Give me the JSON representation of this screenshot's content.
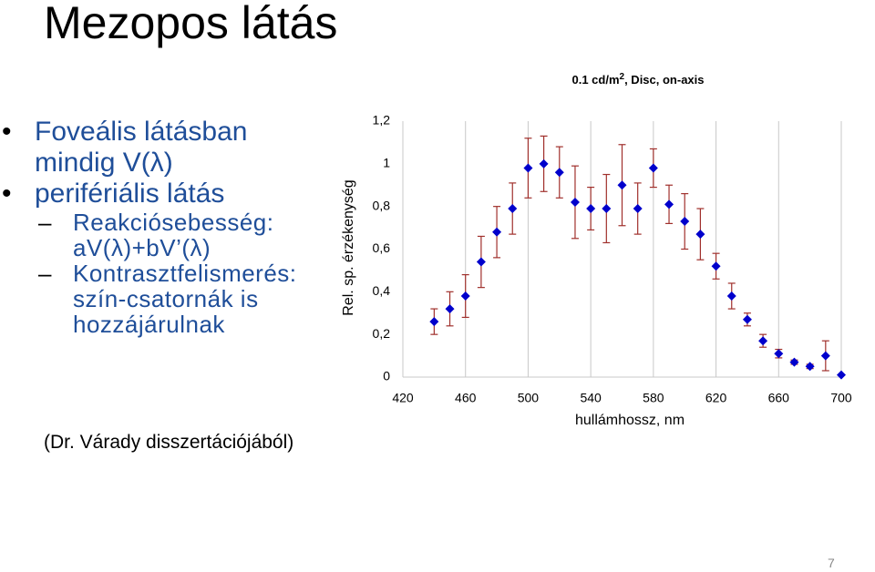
{
  "header": {
    "title": "Mezopos látás"
  },
  "bullets": [
    {
      "text": "Foveális látásban mindig V(λ)"
    },
    {
      "text": "perifériális látás",
      "sub": [
        "Reakciósebesség: aV(λ)+bV’(λ)",
        "Kontrasztfelismerés: szín-csatornák is hozzájárulnak"
      ]
    }
  ],
  "source": "(Dr. Várady disszertációjából)",
  "page_number": "7",
  "chart_data": {
    "type": "scatter",
    "title_parts": [
      "0.1 cd/m",
      "2",
      ", Disc, on-axis"
    ],
    "x_label": "hullámhossz, nm",
    "y_label": "Rel. sp. érzékenység",
    "x": [
      440,
      450,
      460,
      470,
      480,
      490,
      500,
      510,
      520,
      530,
      540,
      550,
      560,
      570,
      580,
      590,
      600,
      610,
      620,
      630,
      640,
      650,
      660,
      670,
      680,
      690,
      700
    ],
    "series": [
      {
        "color": "#0000cc",
        "error_color": "#a0302c",
        "values": [
          0.26,
          0.32,
          0.38,
          0.54,
          0.68,
          0.79,
          0.98,
          1.0,
          0.96,
          0.82,
          0.79,
          0.79,
          0.9,
          0.79,
          0.98,
          0.81,
          0.73,
          0.67,
          0.52,
          0.38,
          0.27,
          0.17,
          0.11,
          0.07,
          0.05,
          0.1,
          0.01
        ],
        "errors": [
          0.06,
          0.08,
          0.1,
          0.12,
          0.12,
          0.12,
          0.14,
          0.13,
          0.12,
          0.17,
          0.1,
          0.16,
          0.19,
          0.12,
          0.09,
          0.09,
          0.13,
          0.12,
          0.06,
          0.06,
          0.03,
          0.03,
          0.02,
          0.01,
          0.01,
          0.07,
          0
        ]
      }
    ],
    "xlim": [
      420,
      700
    ],
    "ylim": [
      0,
      1.2
    ],
    "xticks": [
      420,
      460,
      500,
      540,
      580,
      620,
      660,
      700
    ],
    "yticks": [
      0,
      {
        "value": 0.2,
        "label": "0,2"
      },
      {
        "value": 0.4,
        "label": "0,4"
      },
      {
        "value": 0.6,
        "label": "0,6"
      },
      {
        "value": 0.8,
        "label": "0,8"
      },
      1,
      {
        "value": 1.2,
        "label": "1,2"
      }
    ],
    "grid": "x"
  }
}
